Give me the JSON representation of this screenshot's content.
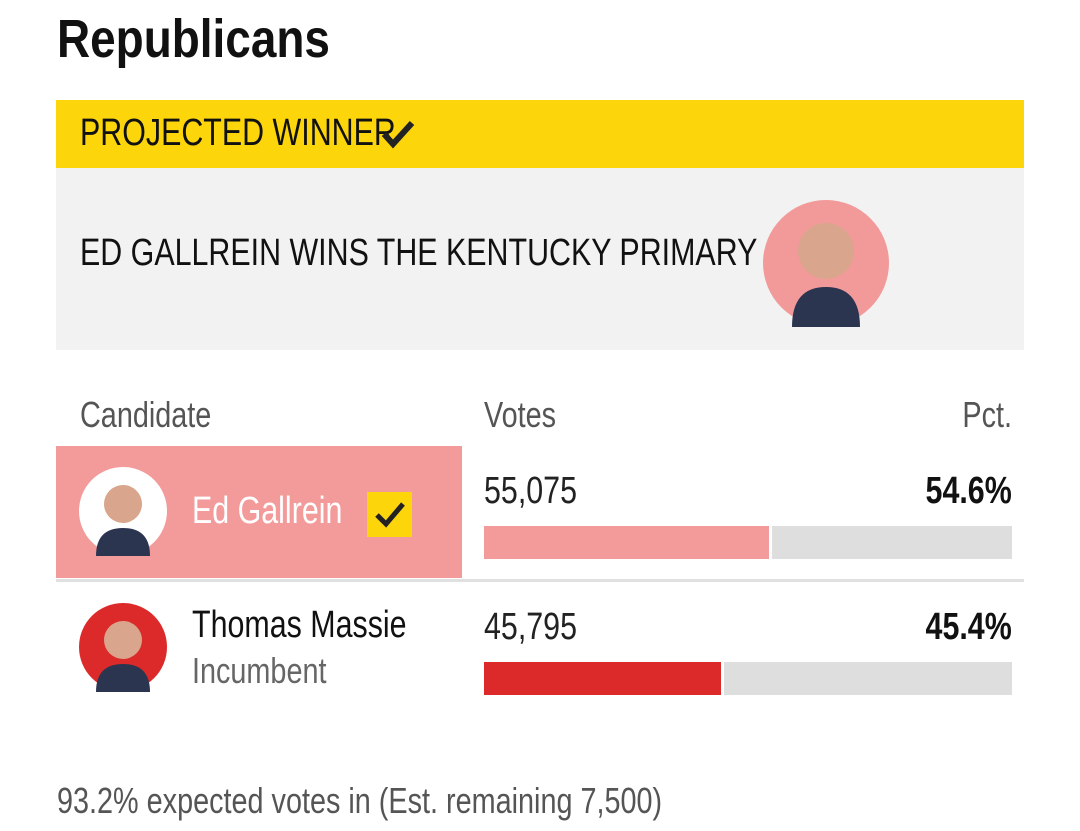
{
  "header": {
    "title": "Republicans"
  },
  "banner": {
    "label": "PROJECTED WINNER",
    "headline": "ED GALLREIN WINS THE KENTUCKY PRIMARY"
  },
  "table": {
    "columns": [
      "Candidate",
      "Votes",
      "Pct."
    ],
    "rows": [
      {
        "name": "Ed Gallrein",
        "votes": "55,075",
        "pct": 54.6,
        "pct_label": "54.6%",
        "color": "#f39a9a",
        "winner": true
      },
      {
        "name": "Thomas Massie",
        "note": "Incumbent",
        "votes": "45,795",
        "pct": 45.4,
        "pct_label": "45.4%",
        "color": "#dc2a2a",
        "winner": false
      }
    ]
  },
  "footer": {
    "text": "93.2% expected votes in (Est. remaining 7,500)"
  }
}
